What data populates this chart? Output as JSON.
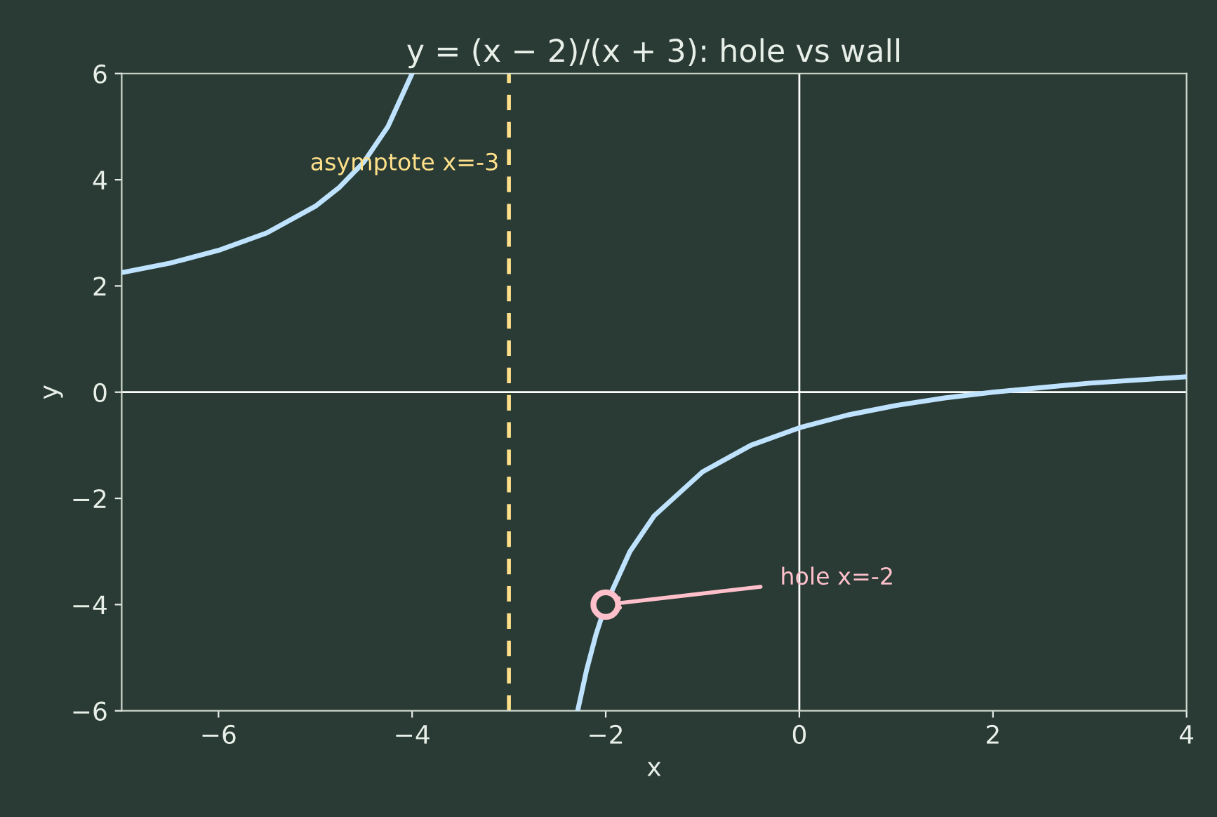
{
  "chart_data": {
    "type": "line",
    "title": "y = (x − 2)/(x + 3): hole vs wall",
    "xlabel": "x",
    "ylabel": "y",
    "xlim": [
      -7,
      4
    ],
    "ylim": [
      -6,
      6
    ],
    "xticks": [
      -6,
      -4,
      -2,
      0,
      2,
      4
    ],
    "yticks": [
      -6,
      -4,
      -2,
      0,
      2,
      4,
      6
    ],
    "grid": false,
    "line_style": "solid",
    "series": [
      {
        "color": "#bfe3ff",
        "x": [
          -7,
          -6.5,
          -6,
          -5.5,
          -5,
          -4.75,
          -4.5,
          -4.25,
          -4
        ],
        "values": [
          2.25,
          2.43,
          2.67,
          3.0,
          3.5,
          3.86,
          4.33,
          5.0,
          6.0
        ]
      },
      {
        "color": "#bfe3ff",
        "x": [
          -2.29,
          -2.2,
          -2.1,
          -2,
          -1.75,
          -1.5,
          -1,
          -0.5,
          0,
          0.5,
          1,
          1.5,
          2,
          3,
          4
        ],
        "values": [
          -6,
          -5.25,
          -4.56,
          -4,
          -3.0,
          -2.33,
          -1.5,
          -1.0,
          -0.67,
          -0.43,
          -0.25,
          -0.11,
          0,
          0.17,
          0.29
        ]
      },
      {
        "type": "scatter",
        "marker": "circle",
        "color": "#ffc0cb",
        "x": [
          -2
        ],
        "values": [
          -4
        ]
      }
    ],
    "ref_lines": [
      {
        "axis": "x",
        "value": 0,
        "color": "#ffffff",
        "line_style": "solid"
      },
      {
        "axis": "y",
        "value": 0,
        "color": "#ffffff",
        "line_style": "solid"
      },
      {
        "axis": "x",
        "value": -3,
        "color": "#ffe08a",
        "line_style": "dashed",
        "label": "asymptote x=-3"
      }
    ],
    "annotations": [
      {
        "text": "hole x=-2",
        "x": -2,
        "y": -4
      }
    ]
  }
}
